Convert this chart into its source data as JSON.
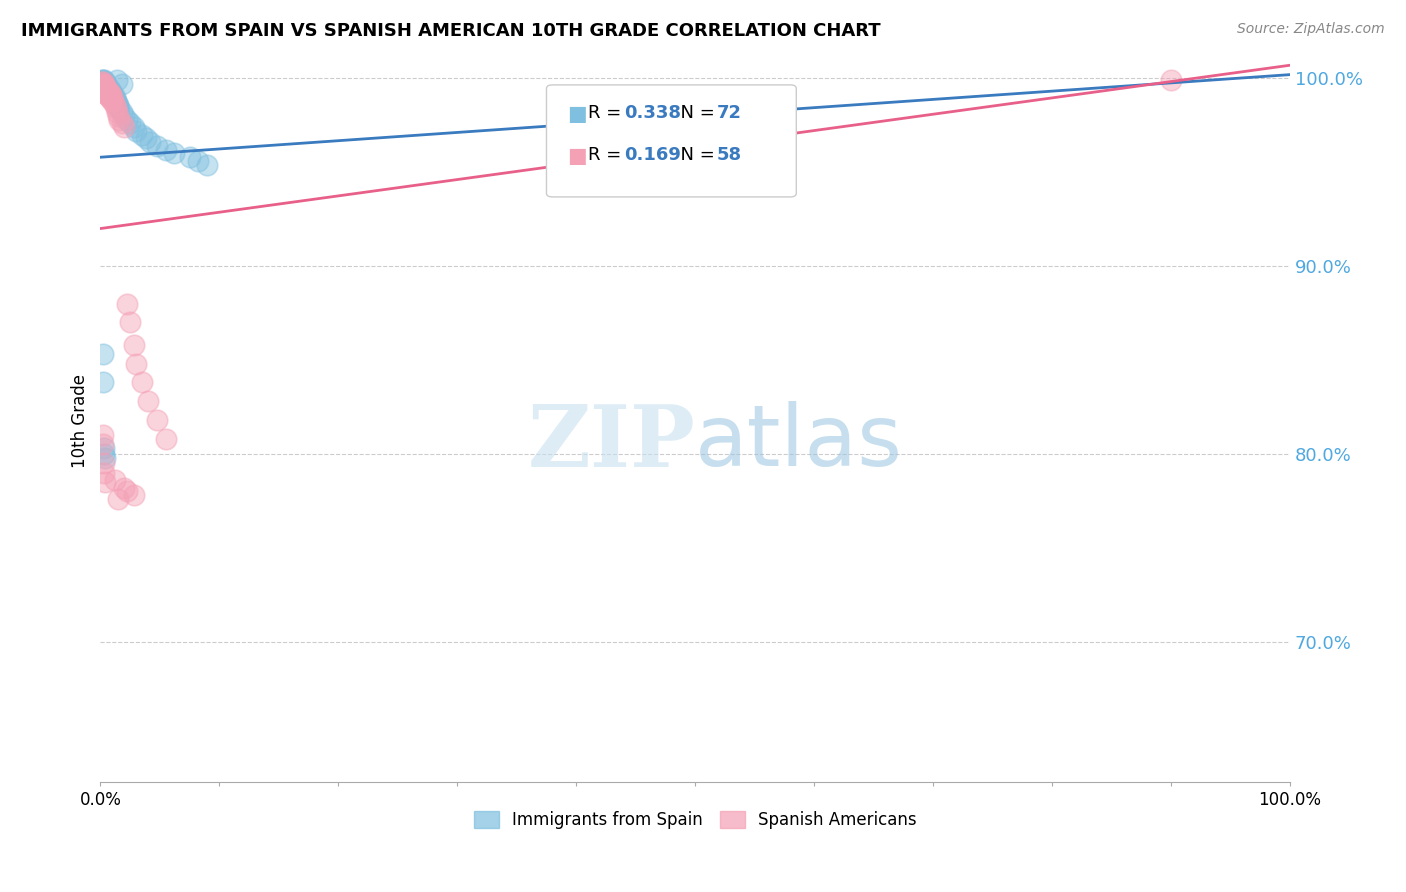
{
  "title": "IMMIGRANTS FROM SPAIN VS SPANISH AMERICAN 10TH GRADE CORRELATION CHART",
  "source": "Source: ZipAtlas.com",
  "ylabel": "10th Grade",
  "xlim": [
    0.0,
    1.0
  ],
  "ylim": [
    0.625,
    1.01
  ],
  "yticks": [
    0.7,
    0.8,
    0.9,
    1.0
  ],
  "ytick_labels": [
    "70.0%",
    "80.0%",
    "90.0%",
    "100.0%"
  ],
  "xticks": [
    0.0,
    0.1,
    0.2,
    0.3,
    0.4,
    0.5,
    0.6,
    0.7,
    0.8,
    0.9,
    1.0
  ],
  "blue_color": "#7fbfdf",
  "pink_color": "#f4a0b5",
  "blue_line_color": "#3a7abf",
  "pink_line_color": "#e8608a",
  "legend_blue_R": "0.338",
  "legend_blue_N": "72",
  "legend_pink_R": "0.169",
  "legend_pink_N": "58",
  "legend_color": "#3a7abf",
  "watermark_zip": "ZIP",
  "watermark_atlas": "atlas",
  "blue_scatter_x": [
    0.001,
    0.001,
    0.001,
    0.002,
    0.002,
    0.002,
    0.002,
    0.002,
    0.002,
    0.003,
    0.003,
    0.003,
    0.003,
    0.003,
    0.003,
    0.004,
    0.004,
    0.004,
    0.004,
    0.004,
    0.005,
    0.005,
    0.005,
    0.005,
    0.005,
    0.006,
    0.006,
    0.006,
    0.006,
    0.007,
    0.007,
    0.007,
    0.007,
    0.008,
    0.008,
    0.008,
    0.009,
    0.009,
    0.01,
    0.01,
    0.01,
    0.011,
    0.011,
    0.012,
    0.012,
    0.013,
    0.014,
    0.015,
    0.015,
    0.016,
    0.018,
    0.02,
    0.022,
    0.025,
    0.028,
    0.03,
    0.035,
    0.038,
    0.042,
    0.048,
    0.055,
    0.062,
    0.075,
    0.082,
    0.09,
    0.002,
    0.002,
    0.003,
    0.003,
    0.004,
    0.014,
    0.018
  ],
  "blue_scatter_y": [
    0.999,
    0.997,
    0.996,
    0.999,
    0.998,
    0.996,
    0.995,
    0.994,
    0.993,
    0.999,
    0.998,
    0.997,
    0.996,
    0.995,
    0.994,
    0.998,
    0.997,
    0.996,
    0.995,
    0.993,
    0.997,
    0.996,
    0.995,
    0.994,
    0.992,
    0.996,
    0.995,
    0.994,
    0.993,
    0.995,
    0.994,
    0.993,
    0.992,
    0.994,
    0.993,
    0.992,
    0.993,
    0.991,
    0.992,
    0.991,
    0.99,
    0.991,
    0.99,
    0.99,
    0.989,
    0.988,
    0.987,
    0.986,
    0.985,
    0.984,
    0.982,
    0.98,
    0.978,
    0.976,
    0.974,
    0.972,
    0.97,
    0.968,
    0.966,
    0.964,
    0.962,
    0.96,
    0.958,
    0.956,
    0.954,
    0.853,
    0.838,
    0.803,
    0.8,
    0.798,
    0.999,
    0.997
  ],
  "pink_scatter_x": [
    0.001,
    0.001,
    0.002,
    0.002,
    0.002,
    0.002,
    0.002,
    0.003,
    0.003,
    0.003,
    0.003,
    0.003,
    0.004,
    0.004,
    0.004,
    0.004,
    0.005,
    0.005,
    0.005,
    0.006,
    0.006,
    0.006,
    0.007,
    0.007,
    0.007,
    0.008,
    0.008,
    0.009,
    0.009,
    0.01,
    0.01,
    0.011,
    0.012,
    0.013,
    0.014,
    0.015,
    0.016,
    0.018,
    0.02,
    0.022,
    0.025,
    0.028,
    0.03,
    0.035,
    0.04,
    0.048,
    0.055,
    0.002,
    0.002,
    0.003,
    0.003,
    0.004,
    0.022,
    0.028,
    0.012,
    0.02,
    0.015,
    0.9
  ],
  "pink_scatter_y": [
    0.998,
    0.997,
    0.998,
    0.997,
    0.996,
    0.995,
    0.994,
    0.997,
    0.996,
    0.995,
    0.994,
    0.993,
    0.996,
    0.995,
    0.994,
    0.992,
    0.995,
    0.994,
    0.992,
    0.994,
    0.993,
    0.991,
    0.993,
    0.992,
    0.99,
    0.992,
    0.99,
    0.991,
    0.989,
    0.99,
    0.988,
    0.988,
    0.986,
    0.984,
    0.982,
    0.98,
    0.978,
    0.976,
    0.974,
    0.88,
    0.87,
    0.858,
    0.848,
    0.838,
    0.828,
    0.818,
    0.808,
    0.81,
    0.805,
    0.795,
    0.79,
    0.785,
    0.78,
    0.778,
    0.786,
    0.782,
    0.776,
    0.999
  ],
  "blue_line_x0": 0.0,
  "blue_line_x1": 1.0,
  "blue_line_y0": 0.958,
  "blue_line_y1": 1.002,
  "pink_line_x0": 0.0,
  "pink_line_x1": 1.0,
  "pink_line_y0": 0.92,
  "pink_line_y1": 1.007
}
